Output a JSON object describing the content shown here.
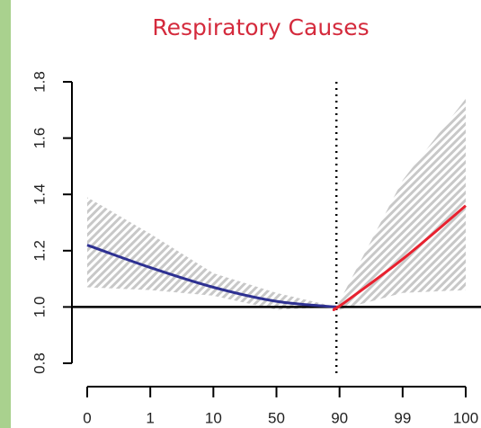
{
  "chart_data": {
    "type": "line",
    "title": "Respiratory Causes",
    "xlim": [
      0,
      100
    ],
    "xticks": [
      0,
      1,
      10,
      50,
      90,
      99,
      100
    ],
    "ylim": [
      0.8,
      1.8
    ],
    "yticks": [
      0.8,
      1.0,
      1.2,
      1.4,
      1.6,
      1.8
    ],
    "hline": 1,
    "vline": 88,
    "series": [
      {
        "color": "#2e3192",
        "x": [
          0,
          1,
          10,
          50,
          88
        ],
        "values": [
          1.22,
          1.14,
          1.07,
          1.02,
          1.0
        ],
        "lower": [
          1.07,
          1.06,
          1.04,
          0.99,
          1.0
        ],
        "upper": [
          1.39,
          1.26,
          1.12,
          1.05,
          1.0
        ]
      },
      {
        "color": "#e8212f",
        "x": [
          88,
          90,
          99,
          100
        ],
        "values": [
          1.0,
          1.003,
          1.17,
          1.36
        ],
        "lower": [
          1.0,
          0.99,
          1.05,
          1.06
        ],
        "upper": [
          1.0,
          1.02,
          1.45,
          1.74
        ]
      }
    ]
  }
}
